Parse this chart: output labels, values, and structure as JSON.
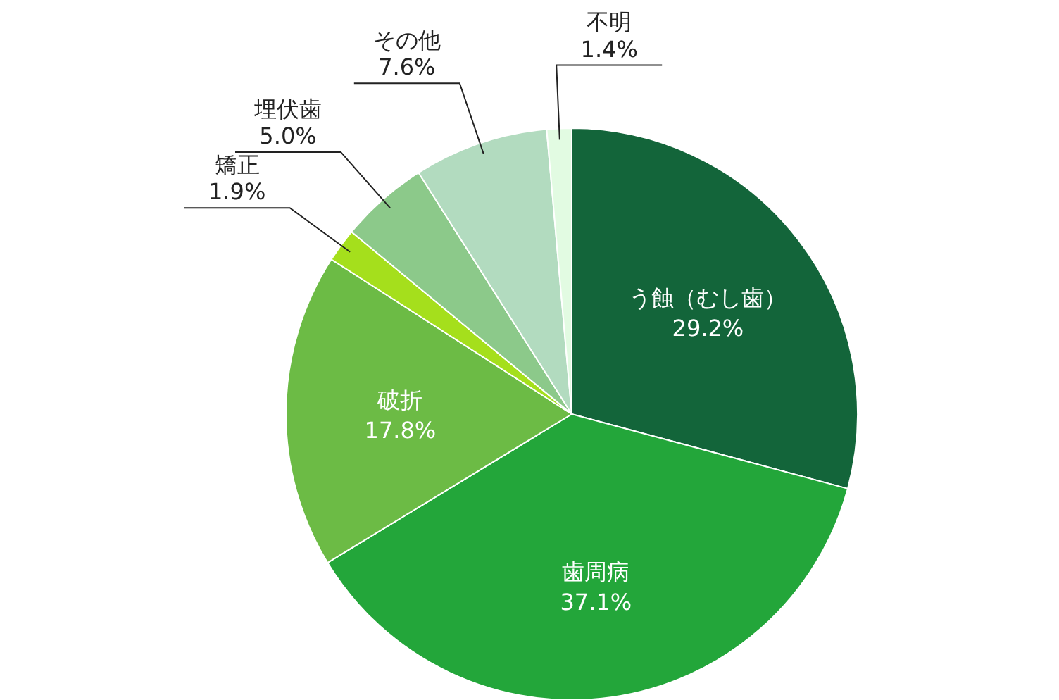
{
  "chart_data": {
    "type": "pie",
    "categories": [
      "う蝕（むし歯）",
      "歯周病",
      "破折",
      "矯正",
      "埋伏歯",
      "その他",
      "不明"
    ],
    "values": [
      29.2,
      37.1,
      17.8,
      1.9,
      5.0,
      7.6,
      1.4
    ],
    "colors": [
      "#13653a",
      "#23a63a",
      "#6cbb45",
      "#a5df1c",
      "#8cc98a",
      "#b2dbbf",
      "#e2fbe2"
    ],
    "value_labels": [
      "29.2%",
      "37.1%",
      "17.8%",
      "1.9%",
      "5.0%",
      "7.6%",
      "1.4%"
    ]
  }
}
